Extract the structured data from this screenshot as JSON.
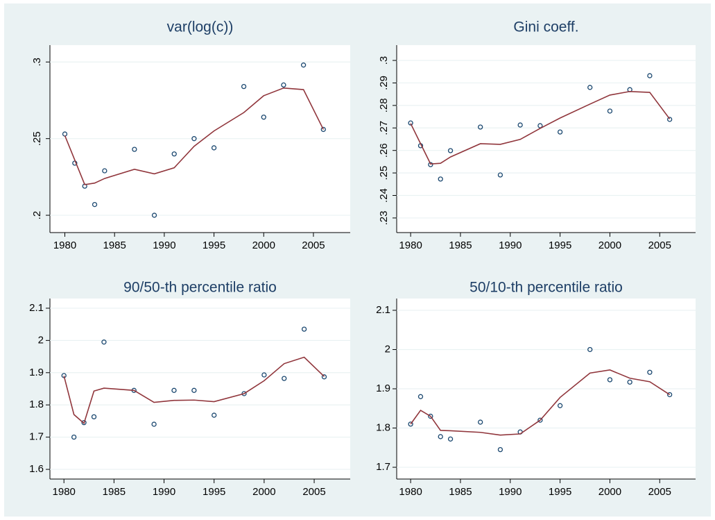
{
  "chart_data": [
    {
      "type": "scatter",
      "title": "var(log(c))",
      "x": [
        1980,
        1981,
        1982,
        1983,
        1984,
        1987,
        1989,
        1991,
        1993,
        1995,
        1998,
        2000,
        2002,
        2004,
        2006
      ],
      "series": [
        {
          "mode": "markers",
          "color": "#1a476f",
          "values": [
            0.253,
            0.234,
            0.219,
            0.207,
            0.229,
            0.243,
            0.2,
            0.24,
            0.25,
            0.244,
            0.284,
            0.264,
            0.285,
            0.298,
            0.256
          ]
        },
        {
          "mode": "line",
          "color": "#90353b",
          "values": [
            0.252,
            0.236,
            0.22,
            0.221,
            0.224,
            0.23,
            0.227,
            0.231,
            0.245,
            0.255,
            0.267,
            0.278,
            0.283,
            0.282,
            0.256
          ]
        }
      ],
      "xlim": [
        1978.5,
        2008.7
      ],
      "xticks": [
        1980,
        1985,
        1990,
        1995,
        2000,
        2005
      ],
      "ylim": [
        0.1887,
        0.311
      ],
      "yticks": [
        {
          "value": 0.2,
          "label": ".2"
        },
        {
          "value": 0.25,
          "label": ".25"
        },
        {
          "value": 0.3,
          "label": ".3"
        }
      ],
      "ytick_rotation": -90,
      "grid": true
    },
    {
      "type": "scatter",
      "title": "Gini coeff.",
      "x": [
        1980,
        1981,
        1982,
        1983,
        1984,
        1987,
        1989,
        1991,
        1993,
        1995,
        1998,
        2000,
        2002,
        2004,
        2006
      ],
      "series": [
        {
          "mode": "markers",
          "color": "#1a476f",
          "values": [
            0.2722,
            0.2621,
            0.2537,
            0.2473,
            0.2599,
            0.2704,
            0.2491,
            0.2713,
            0.271,
            0.2682,
            0.288,
            0.2775,
            0.287,
            0.2932,
            0.2738
          ]
        },
        {
          "mode": "line",
          "color": "#90353b",
          "values": [
            0.272,
            0.263,
            0.254,
            0.2543,
            0.2571,
            0.263,
            0.2627,
            0.2649,
            0.2698,
            0.2744,
            0.2806,
            0.2846,
            0.2862,
            0.2858,
            0.274
          ]
        }
      ],
      "xlim": [
        1978.6,
        2008.6
      ],
      "xticks": [
        1980,
        1985,
        1990,
        1995,
        2000,
        2005
      ],
      "ylim": [
        0.2235,
        0.3068
      ],
      "yticks": [
        {
          "value": 0.23,
          "label": ".23"
        },
        {
          "value": 0.24,
          "label": ".24"
        },
        {
          "value": 0.25,
          "label": ".25"
        },
        {
          "value": 0.26,
          "label": ".26"
        },
        {
          "value": 0.27,
          "label": ".27"
        },
        {
          "value": 0.28,
          "label": ".28"
        },
        {
          "value": 0.29,
          "label": ".29"
        },
        {
          "value": 0.3,
          "label": ".3"
        }
      ],
      "ytick_rotation": -90,
      "grid": true
    },
    {
      "type": "scatter",
      "title": "90/50-th percentile ratio",
      "x": [
        1980,
        1981,
        1982,
        1983,
        1984,
        1987,
        1989,
        1991,
        1993,
        1995,
        1998,
        2000,
        2002,
        2004,
        2006
      ],
      "series": [
        {
          "mode": "markers",
          "color": "#1a476f",
          "values": [
            1.891,
            1.7,
            1.745,
            1.763,
            1.995,
            1.845,
            1.74,
            1.845,
            1.845,
            1.768,
            1.835,
            1.893,
            1.882,
            2.035,
            1.887
          ]
        },
        {
          "mode": "line",
          "color": "#90353b",
          "values": [
            1.89,
            1.77,
            1.743,
            1.843,
            1.852,
            1.845,
            1.808,
            1.814,
            1.815,
            1.81,
            1.835,
            1.875,
            1.928,
            1.948,
            1.888
          ]
        }
      ],
      "xlim": [
        1978.6,
        2008.6
      ],
      "xticks": [
        1980,
        1985,
        1990,
        1995,
        2000,
        2005
      ],
      "ylim": [
        1.57,
        2.13
      ],
      "yticks": [
        1.6,
        1.7,
        1.8,
        1.9,
        2,
        2.1
      ],
      "ytick_rotation": 0,
      "grid": true
    },
    {
      "type": "scatter",
      "title": "50/10-th percentile ratio",
      "x": [
        1980,
        1981,
        1982,
        1983,
        1984,
        1987,
        1989,
        1991,
        1993,
        1995,
        1998,
        2000,
        2002,
        2004,
        2006
      ],
      "series": [
        {
          "mode": "markers",
          "color": "#1a476f",
          "values": [
            1.81,
            1.88,
            1.83,
            1.778,
            1.772,
            1.815,
            1.745,
            1.79,
            1.82,
            1.857,
            2.0,
            1.923,
            1.917,
            1.942,
            1.885
          ]
        },
        {
          "mode": "line",
          "color": "#90353b",
          "values": [
            1.81,
            1.845,
            1.83,
            1.794,
            1.793,
            1.789,
            1.782,
            1.785,
            1.82,
            1.878,
            1.94,
            1.948,
            1.927,
            1.918,
            1.885
          ]
        }
      ],
      "xlim": [
        1978.6,
        2008.6
      ],
      "xticks": [
        1980,
        1985,
        1990,
        1995,
        2000,
        2005
      ],
      "ylim": [
        1.67,
        2.13
      ],
      "yticks": [
        1.7,
        1.8,
        1.9,
        2,
        2.1
      ],
      "ytick_rotation": 0,
      "grid": true
    }
  ]
}
